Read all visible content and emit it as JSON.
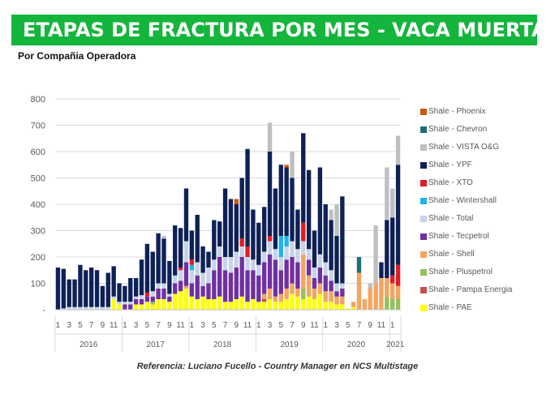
{
  "header": {
    "title": "ETAPAS DE FRACTURA POR MES -  VACA MUERTA",
    "subtitle": "Por Compañia Operadora"
  },
  "footer": {
    "reference": "Referencia:  Luciano Fucello - Country Manager en NCS Multistage"
  },
  "chart_data": {
    "type": "bar",
    "stacked": true,
    "ylim": [
      0,
      800
    ],
    "yticks": [
      "-",
      "100",
      "200",
      "300",
      "400",
      "500",
      "600",
      "700",
      "800"
    ],
    "grid": true,
    "legend_position": "right",
    "month_labels": [
      "1",
      "",
      "3",
      "",
      "5",
      "",
      "7",
      "",
      "9",
      "",
      "11",
      "",
      "1",
      "",
      "3",
      "",
      "5",
      "",
      "7",
      "",
      "9",
      "",
      "11",
      "",
      "1",
      "",
      "3",
      "",
      "5",
      "",
      "7",
      "",
      "9",
      "",
      "11",
      "",
      "1",
      "",
      "3",
      "",
      "5",
      "",
      "7",
      "",
      "9",
      "",
      "11",
      "",
      "1",
      "",
      "3",
      "",
      "5",
      "",
      "7",
      "",
      "9",
      "",
      "11",
      "",
      "1"
    ],
    "year_labels": [
      "2016",
      "2017",
      "2018",
      "2019",
      "2020",
      "2021"
    ],
    "legend": [
      {
        "name": "Shale - Phoenix",
        "color": "#c55a11"
      },
      {
        "name": "Shale - Chevron",
        "color": "#1f6f78"
      },
      {
        "name": "Shale - VISTA O&G",
        "color": "#bfbfbf"
      },
      {
        "name": "Shale - YPF",
        "color": "#0e2157"
      },
      {
        "name": "Shale - XTO",
        "color": "#e31b23"
      },
      {
        "name": "Shale - Wintershall",
        "color": "#1fb2e8"
      },
      {
        "name": "Shale - Total",
        "color": "#c7d3ea"
      },
      {
        "name": "Shale - Tecpetrol",
        "color": "#7030a0"
      },
      {
        "name": "Shale - Shell",
        "color": "#f4a460"
      },
      {
        "name": "Shale - Pluspetrol",
        "color": "#92c05a"
      },
      {
        "name": "Shale - Pampa Energia",
        "color": "#c0504d"
      },
      {
        "name": "Shale - PAE",
        "color": "#ffff00"
      }
    ],
    "series_order": [
      "PAE",
      "Pampa",
      "Pluspetrol",
      "Shell",
      "Tecpetrol",
      "Total",
      "Wintershall",
      "XTO",
      "YPF",
      "VISTA",
      "Chevron",
      "Phoenix"
    ],
    "bars": [
      {
        "YPF": 160
      },
      {
        "Total": 5,
        "YPF": 150
      },
      {
        "Total": 10,
        "YPF": 105
      },
      {
        "Total": 10,
        "YPF": 105
      },
      {
        "Total": 10,
        "YPF": 160
      },
      {
        "Total": 10,
        "YPF": 140
      },
      {
        "Total": 10,
        "YPF": 150
      },
      {
        "Total": 10,
        "YPF": 140
      },
      {
        "Total": 10,
        "YPF": 80
      },
      {
        "Total": 10,
        "YPF": 130
      },
      {
        "PAE": 40,
        "Total": 10,
        "YPF": 115
      },
      {
        "PAE": 20,
        "Total": 10,
        "YPF": 70
      },
      {
        "Tecpetrol": 20,
        "Total": 10,
        "YPF": 60
      },
      {
        "Tecpetrol": 20,
        "Total": 10,
        "YPF": 90
      },
      {
        "PAE": 20,
        "Tecpetrol": 20,
        "Total": 10,
        "YPF": 70
      },
      {
        "PAE": 20,
        "Tecpetrol": 20,
        "Total": 15,
        "YPF": 135
      },
      {
        "PAE": 30,
        "Tecpetrol": 20,
        "XTO": 15,
        "YPF": 185
      },
      {
        "PAE": 20,
        "Pluspetrol": 10,
        "Tecpetrol": 20,
        "Total": 20,
        "YPF": 150
      },
      {
        "PAE": 40,
        "Tecpetrol": 40,
        "Total": 20,
        "YPF": 190
      },
      {
        "PAE": 40,
        "Tecpetrol": 40,
        "Total": 20,
        "VISTA": 10,
        "YPF": 170
      },
      {
        "PAE": 30,
        "Tecpetrol": 20,
        "Total": 10,
        "YPF": 125
      },
      {
        "PAE": 60,
        "Tecpetrol": 40,
        "Total": 30,
        "YPF": 190
      },
      {
        "PAE": 70,
        "XTO": 10,
        "Tecpetrol": 40,
        "Total": 40,
        "YPF": 150
      },
      {
        "PAE": 80,
        "Shell": 10,
        "Tecpetrol": 90,
        "Total": 80,
        "YPF": 200
      },
      {
        "PAE": 50,
        "Tecpetrol": 50,
        "Total": 50,
        "Wintershall": 20,
        "XTO": 20,
        "YPF": 110
      },
      {
        "PAE": 40,
        "Tecpetrol": 90,
        "Total": 50,
        "YPF": 180
      },
      {
        "PAE": 50,
        "Tecpetrol": 40,
        "Total": 50,
        "YPF": 100
      },
      {
        "PAE": 40,
        "Tecpetrol": 60,
        "Total": 60,
        "YPF": 60
      },
      {
        "PAE": 40,
        "Tecpetrol": 110,
        "Total": 40,
        "YPF": 150
      },
      {
        "PAE": 50,
        "Tecpetrol": 150,
        "Total": 40,
        "YPF": 95
      },
      {
        "PAE": 30,
        "Tecpetrol": 120,
        "Total": 50,
        "YPF": 260
      },
      {
        "PAE": 30,
        "Tecpetrol": 110,
        "Total": 60,
        "YPF": 220
      },
      {
        "PAE": 40,
        "Tecpetrol": 120,
        "Total": 60,
        "Phoenix": 20,
        "YPF": 180
      },
      {
        "PAE": 50,
        "Tecpetrol": 150,
        "Total": 40,
        "XTO": 30,
        "YPF": 230
      },
      {
        "PAE": 30,
        "Tecpetrol": 120,
        "Total": 50,
        "XTO": 40,
        "YPF": 370
      },
      {
        "PAE": 40,
        "Tecpetrol": 110,
        "Total": 40,
        "YPF": 190
      },
      {
        "PAE": 30,
        "Tecpetrol": 100,
        "Total": 40,
        "YPF": 160
      },
      {
        "PAE": 30,
        "Shell": 20,
        "Pampa": 10,
        "Tecpetrol": 120,
        "Total": 40,
        "YPF": 170
      },
      {
        "PAE": 40,
        "Shell": 40,
        "Tecpetrol": 130,
        "Total": 50,
        "XTO": 20,
        "YPF": 320,
        "VISTA": 110
      },
      {
        "PAE": 30,
        "Shell": 20,
        "Tecpetrol": 140,
        "Total": 40,
        "YPF": 230
      },
      {
        "PAE": 30,
        "Shell": 30,
        "Tecpetrol": 90,
        "Total": 50,
        "Wintershall": 80,
        "YPF": 270
      },
      {
        "PAE": 40,
        "Shell": 40,
        "Tecpetrol": 110,
        "Total": 50,
        "Wintershall": 40,
        "YPF": 260,
        "Phoenix": 10
      },
      {
        "PAE": 60,
        "Shell": 40,
        "Tecpetrol": 100,
        "Total": 60,
        "YPF": 240,
        "VISTA": 100
      },
      {
        "PAE": 50,
        "Shell": 30,
        "Tecpetrol": 100,
        "Total": 50,
        "YPF": 150
      },
      {
        "PAE": 40,
        "Pluspetrol": 40,
        "Shell": 130,
        "Total": 50,
        "XTO": 70,
        "YPF": 340
      },
      {
        "PAE": 50,
        "Shell": 80,
        "Tecpetrol": 60,
        "Total": 40,
        "YPF": 300
      },
      {
        "PAE": 40,
        "Shell": 40,
        "Tecpetrol": 40,
        "Total": 40,
        "YPF": 140
      },
      {
        "PAE": 60,
        "Shell": 40,
        "Tecpetrol": 60,
        "Total": 50,
        "YPF": 330
      },
      {
        "PAE": 30,
        "Shell": 40,
        "Tecpetrol": 60,
        "Total": 50,
        "YPF": 220
      },
      {
        "PAE": 30,
        "Shell": 40,
        "Tecpetrol": 40,
        "Total": 40,
        "YPF": 190,
        "VISTA": 40
      },
      {
        "PAE": 20,
        "Shell": 30,
        "Tecpetrol": 20,
        "Total": 30,
        "YPF": 180,
        "VISTA": 120
      },
      {
        "PAE": 20,
        "Shell": 30,
        "Tecpetrol": 30,
        "Total": 20,
        "YPF": 330
      },
      {
        "PAE": 5
      },
      {
        "PAE": 10,
        "Shell": 20
      },
      {
        "Shell": 140,
        "Chevron": 60
      },
      {
        "Shell": 40
      },
      {
        "Shell": 80,
        "VISTA": 20
      },
      {
        "Shell": 100,
        "VISTA": 220
      },
      {
        "Shell": 120,
        "YPF": 60
      },
      {
        "Shell": 70,
        "Pluspetrol": 50,
        "YPF": 220,
        "VISTA": 200
      },
      {
        "Shell": 60,
        "Pluspetrol": 40,
        "XTO": 30,
        "YPF": 220,
        "VISTA": 110
      },
      {
        "Shell": 50,
        "Pluspetrol": 40,
        "XTO": 80,
        "YPF": 380,
        "VISTA": 110
      }
    ]
  }
}
